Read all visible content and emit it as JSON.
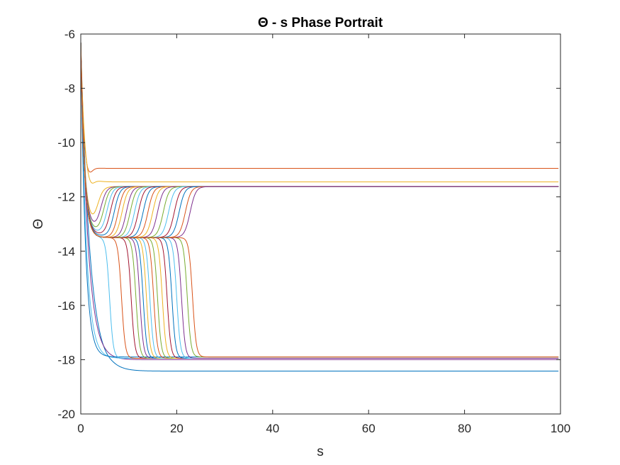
{
  "chart_data": {
    "type": "line",
    "title": "Θ - s Phase Portrait",
    "xlabel": "s",
    "ylabel": "Θ",
    "xlim": [
      0,
      100
    ],
    "ylim": [
      -20,
      -6
    ],
    "xticks": [
      0,
      20,
      40,
      60,
      80,
      100
    ],
    "yticks": [
      -20,
      -18,
      -16,
      -14,
      -12,
      -10,
      -8,
      -6
    ],
    "xtick_labels": [
      "0",
      "20",
      "40",
      "60",
      "80",
      "100"
    ],
    "ytick_labels": [
      "-20",
      "-18",
      "-16",
      "-14",
      "-12",
      "-10",
      "-8",
      "-6"
    ],
    "grid": false,
    "legend": "none",
    "x0": 0,
    "y0": -6.3,
    "series_colors": [
      "#0072BD",
      "#D95319",
      "#EDB120",
      "#7E2F8E",
      "#77AC30",
      "#4DBEEE",
      "#A2142F"
    ],
    "family_note": "Trajectories start at Θ≈-6.3 at s=0 and settle onto plateaus; transition points are read from the plot.",
    "series": [
      {
        "kind": "direct",
        "final": -18.42,
        "min": -18.5,
        "tmin": 5,
        "color": "#0072BD"
      },
      {
        "kind": "direct",
        "final": -10.95,
        "min": -11.75,
        "tmin": 1.8,
        "color": "#D95319"
      },
      {
        "kind": "direct",
        "final": -11.45,
        "min": -12.1,
        "tmin": 2.2,
        "color": "#EDB120"
      },
      {
        "kind": "direct",
        "final": -18.0,
        "min": -18.0,
        "tmin": 4,
        "color": "#7E2F8E"
      },
      {
        "kind": "direct",
        "final": -17.95,
        "min": -17.95,
        "tmin": 3,
        "color": "#4DBEEE"
      },
      {
        "kind": "direct",
        "final": -17.9,
        "min": -17.9,
        "tmin": 2.5,
        "color": "#0072BD"
      },
      {
        "kind": "up",
        "mid": -13.1,
        "t1": 3.5,
        "final": -11.62,
        "color": "#EDB120"
      },
      {
        "kind": "up",
        "mid": -13.2,
        "t1": 4.2,
        "final": -11.62,
        "color": "#7E2F8E"
      },
      {
        "kind": "up",
        "mid": -13.3,
        "t1": 4.8,
        "final": -11.62,
        "color": "#77AC30"
      },
      {
        "kind": "up",
        "mid": -13.35,
        "t1": 5.5,
        "final": -11.62,
        "color": "#4DBEEE"
      },
      {
        "kind": "up",
        "mid": -13.4,
        "t1": 6.2,
        "final": -11.62,
        "color": "#A2142F"
      },
      {
        "kind": "up",
        "mid": -13.45,
        "t1": 7.0,
        "final": -11.62,
        "color": "#0072BD"
      },
      {
        "kind": "up",
        "mid": -13.5,
        "t1": 7.8,
        "final": -11.62,
        "color": "#D95319"
      },
      {
        "kind": "up",
        "mid": -13.5,
        "t1": 8.6,
        "final": -11.62,
        "color": "#EDB120"
      },
      {
        "kind": "up",
        "mid": -13.5,
        "t1": 9.5,
        "final": -11.62,
        "color": "#7E2F8E"
      },
      {
        "kind": "up",
        "mid": -13.5,
        "t1": 10.3,
        "final": -11.62,
        "color": "#77AC30"
      },
      {
        "kind": "up",
        "mid": -13.5,
        "t1": 11.2,
        "final": -11.62,
        "color": "#4DBEEE"
      },
      {
        "kind": "up",
        "mid": -13.5,
        "t1": 12.0,
        "final": -11.62,
        "color": "#A2142F"
      },
      {
        "kind": "up",
        "mid": -13.5,
        "t1": 13.0,
        "final": -11.62,
        "color": "#0072BD"
      },
      {
        "kind": "up",
        "mid": -13.5,
        "t1": 14.0,
        "final": -11.62,
        "color": "#D95319"
      },
      {
        "kind": "up",
        "mid": -13.5,
        "t1": 15.0,
        "final": -11.62,
        "color": "#EDB120"
      },
      {
        "kind": "up",
        "mid": -13.5,
        "t1": 16.0,
        "final": -11.62,
        "color": "#7E2F8E"
      },
      {
        "kind": "up",
        "mid": -13.5,
        "t1": 17.2,
        "final": -11.62,
        "color": "#77AC30"
      },
      {
        "kind": "up",
        "mid": -13.5,
        "t1": 18.3,
        "final": -11.62,
        "color": "#4DBEEE"
      },
      {
        "kind": "up",
        "mid": -13.5,
        "t1": 19.5,
        "final": -11.62,
        "color": "#A2142F"
      },
      {
        "kind": "up",
        "mid": -13.5,
        "t1": 20.5,
        "final": -11.62,
        "color": "#0072BD"
      },
      {
        "kind": "up",
        "mid": -13.5,
        "t1": 21.8,
        "final": -11.62,
        "color": "#D95319"
      },
      {
        "kind": "up",
        "mid": -13.5,
        "t1": 22.8,
        "final": -11.62,
        "color": "#7E2F8E"
      },
      {
        "kind": "down",
        "mid": -13.5,
        "t1": 6.0,
        "final": -17.95,
        "color": "#4DBEEE"
      },
      {
        "kind": "down",
        "mid": -13.5,
        "t1": 8.5,
        "final": -17.95,
        "color": "#D95319"
      },
      {
        "kind": "down",
        "mid": -13.5,
        "t1": 10.5,
        "final": -17.95,
        "color": "#A2142F"
      },
      {
        "kind": "down",
        "mid": -13.5,
        "t1": 11.5,
        "final": -17.95,
        "color": "#77AC30"
      },
      {
        "kind": "down",
        "mid": -13.5,
        "t1": 12.3,
        "final": -17.95,
        "color": "#7E2F8E"
      },
      {
        "kind": "down",
        "mid": -13.5,
        "t1": 13.0,
        "final": -17.95,
        "color": "#0072BD"
      },
      {
        "kind": "down",
        "mid": -13.5,
        "t1": 13.7,
        "final": -17.95,
        "color": "#EDB120"
      },
      {
        "kind": "down",
        "mid": -13.5,
        "t1": 14.4,
        "final": -17.95,
        "color": "#4DBEEE"
      },
      {
        "kind": "down",
        "mid": -13.5,
        "t1": 15.2,
        "final": -17.95,
        "color": "#D95319"
      },
      {
        "kind": "down",
        "mid": -13.5,
        "t1": 16.0,
        "final": -17.95,
        "color": "#77AC30"
      },
      {
        "kind": "down",
        "mid": -13.5,
        "t1": 17.0,
        "final": -17.95,
        "color": "#EDB120"
      },
      {
        "kind": "down",
        "mid": -13.5,
        "t1": 18.0,
        "final": -17.95,
        "color": "#A2142F"
      },
      {
        "kind": "down",
        "mid": -13.5,
        "t1": 19.0,
        "final": -17.95,
        "color": "#0072BD"
      },
      {
        "kind": "down",
        "mid": -13.5,
        "t1": 20.0,
        "final": -17.95,
        "color": "#4DBEEE"
      },
      {
        "kind": "down",
        "mid": -13.5,
        "t1": 21.0,
        "final": -17.95,
        "color": "#7E2F8E"
      },
      {
        "kind": "down",
        "mid": -13.5,
        "t1": 22.2,
        "final": -17.9,
        "color": "#77AC30"
      },
      {
        "kind": "down",
        "mid": -13.5,
        "t1": 23.3,
        "final": -17.9,
        "color": "#D95319"
      }
    ]
  }
}
